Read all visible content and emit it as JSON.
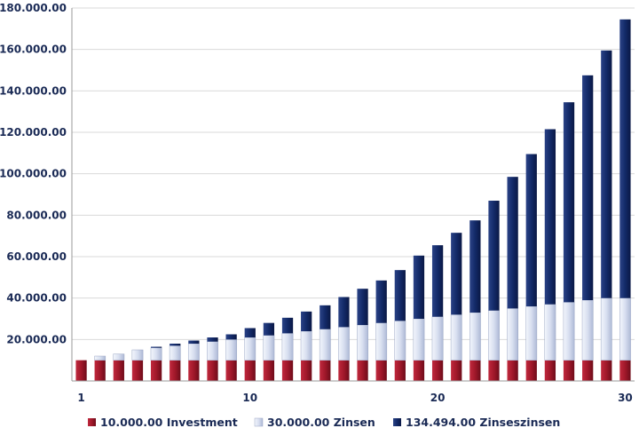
{
  "chart_data": {
    "type": "bar",
    "stacked": true,
    "x": [
      1,
      2,
      3,
      4,
      5,
      6,
      7,
      8,
      9,
      10,
      11,
      12,
      13,
      14,
      15,
      16,
      17,
      18,
      19,
      20,
      21,
      22,
      23,
      24,
      25,
      26,
      27,
      28,
      29,
      30
    ],
    "x_tick_labels": [
      "1",
      "10",
      "20",
      "30"
    ],
    "y_tick_labels": [
      "20.000.00",
      "40.000.00",
      "60.000.00",
      "80.000.00",
      "100.000.00",
      "120.000.00",
      "140.000.00",
      "160.000.00",
      "180.000.00"
    ],
    "ylim": [
      0,
      180000
    ],
    "grid": true,
    "legend_position": "bottom",
    "series": [
      {
        "name": "10.000.00 Investment",
        "color": "#a0182a",
        "values": [
          10000,
          10000,
          10000,
          10000,
          10000,
          10000,
          10000,
          10000,
          10000,
          10000,
          10000,
          10000,
          10000,
          10000,
          10000,
          10000,
          10000,
          10000,
          10000,
          10000,
          10000,
          10000,
          10000,
          10000,
          10000,
          10000,
          10000,
          10000,
          10000,
          10000
        ]
      },
      {
        "name": "30.000.00 Zinsen",
        "color": "#d8dff0",
        "values": [
          0,
          2000,
          3000,
          5000,
          6000,
          7000,
          8000,
          9000,
          10000,
          11000,
          12000,
          13000,
          14000,
          15000,
          16000,
          17000,
          18000,
          19000,
          20000,
          21000,
          22000,
          23000,
          24000,
          25000,
          26000,
          27000,
          28000,
          29000,
          30000,
          30000
        ]
      },
      {
        "name": "134.494.00 Zinseszinsen",
        "color": "#132a68",
        "values": [
          0,
          0,
          0,
          0,
          500,
          1000,
          1500,
          2000,
          2500,
          4500,
          6000,
          7500,
          9500,
          11500,
          14500,
          17500,
          20500,
          24500,
          30500,
          34500,
          39500,
          44500,
          53000,
          63500,
          73500,
          84500,
          96500,
          108500,
          119500,
          134494
        ]
      }
    ]
  }
}
